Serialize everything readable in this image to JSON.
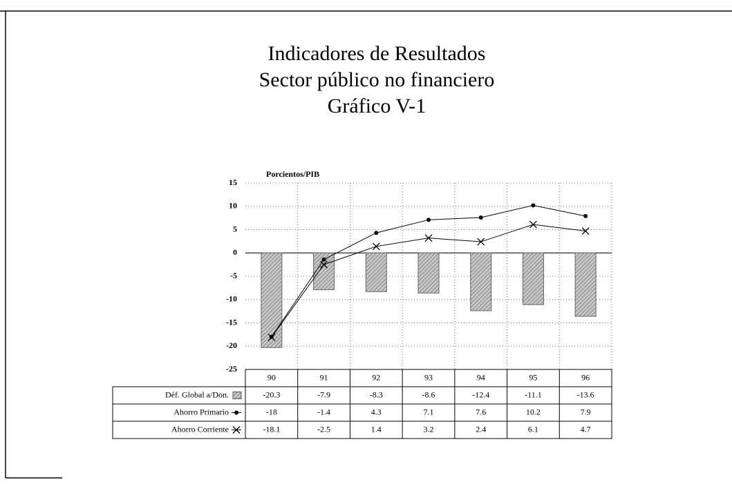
{
  "chart_data": {
    "type": "bar",
    "title": "Indicadores de Resultados",
    "subtitle": "Sector público no financiero",
    "caption": "Gráfico V-1",
    "y_label": "Porcientos/PIB",
    "categories": [
      "90",
      "91",
      "92",
      "93",
      "94",
      "95",
      "96"
    ],
    "series": [
      {
        "name": "Déf. Global a/Don.",
        "type": "bar",
        "color": "#9a9a9a",
        "values": [
          -20.3,
          -7.9,
          -8.3,
          -8.6,
          -12.4,
          -11.1,
          -13.6
        ]
      },
      {
        "name": "Ahorro Primario",
        "type": "line",
        "marker": "dot",
        "color": "#000000",
        "values": [
          -18,
          -1.4,
          4.3,
          7.1,
          7.6,
          10.2,
          7.9
        ]
      },
      {
        "name": "Ahorro Corriente",
        "type": "line",
        "marker": "x",
        "color": "#000000",
        "values": [
          -18.1,
          -2.5,
          1.4,
          3.2,
          2.4,
          6.1,
          4.7
        ]
      }
    ],
    "ylim": [
      -25,
      15
    ],
    "yticks": [
      -25,
      -20,
      -15,
      -10,
      -5,
      0,
      5,
      10,
      15
    ],
    "grid": true
  }
}
